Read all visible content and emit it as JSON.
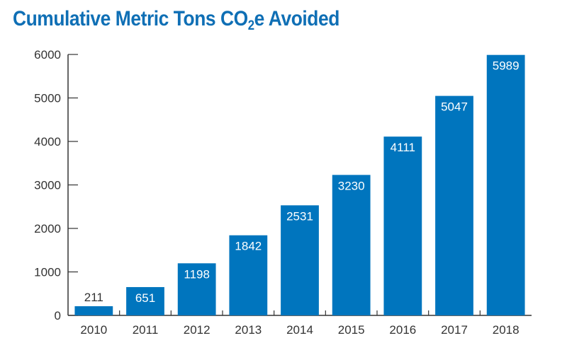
{
  "chart_data": {
    "type": "bar",
    "title_main": "Cumulative Metric Tons CO",
    "title_sub": "2",
    "title_tail": "e Avoided",
    "categories": [
      "2010",
      "2011",
      "2012",
      "2013",
      "2014",
      "2015",
      "2016",
      "2017",
      "2018"
    ],
    "values": [
      211,
      651,
      1198,
      1842,
      2531,
      3230,
      4111,
      5047,
      5989
    ],
    "value_labels": [
      "211",
      "651",
      "1198",
      "1842",
      "2531",
      "3230",
      "4111",
      "5047",
      "5989"
    ],
    "yticks": [
      0,
      1000,
      2000,
      3000,
      4000,
      5000,
      6000
    ],
    "ytick_labels": [
      "0",
      "1000",
      "2000",
      "3000",
      "4000",
      "5000",
      "6000"
    ],
    "ylim": [
      0,
      6000
    ],
    "xlabel": "",
    "ylabel": "",
    "grid": false,
    "bar_color": "#0075be",
    "title_color": "#0f6fb5"
  }
}
